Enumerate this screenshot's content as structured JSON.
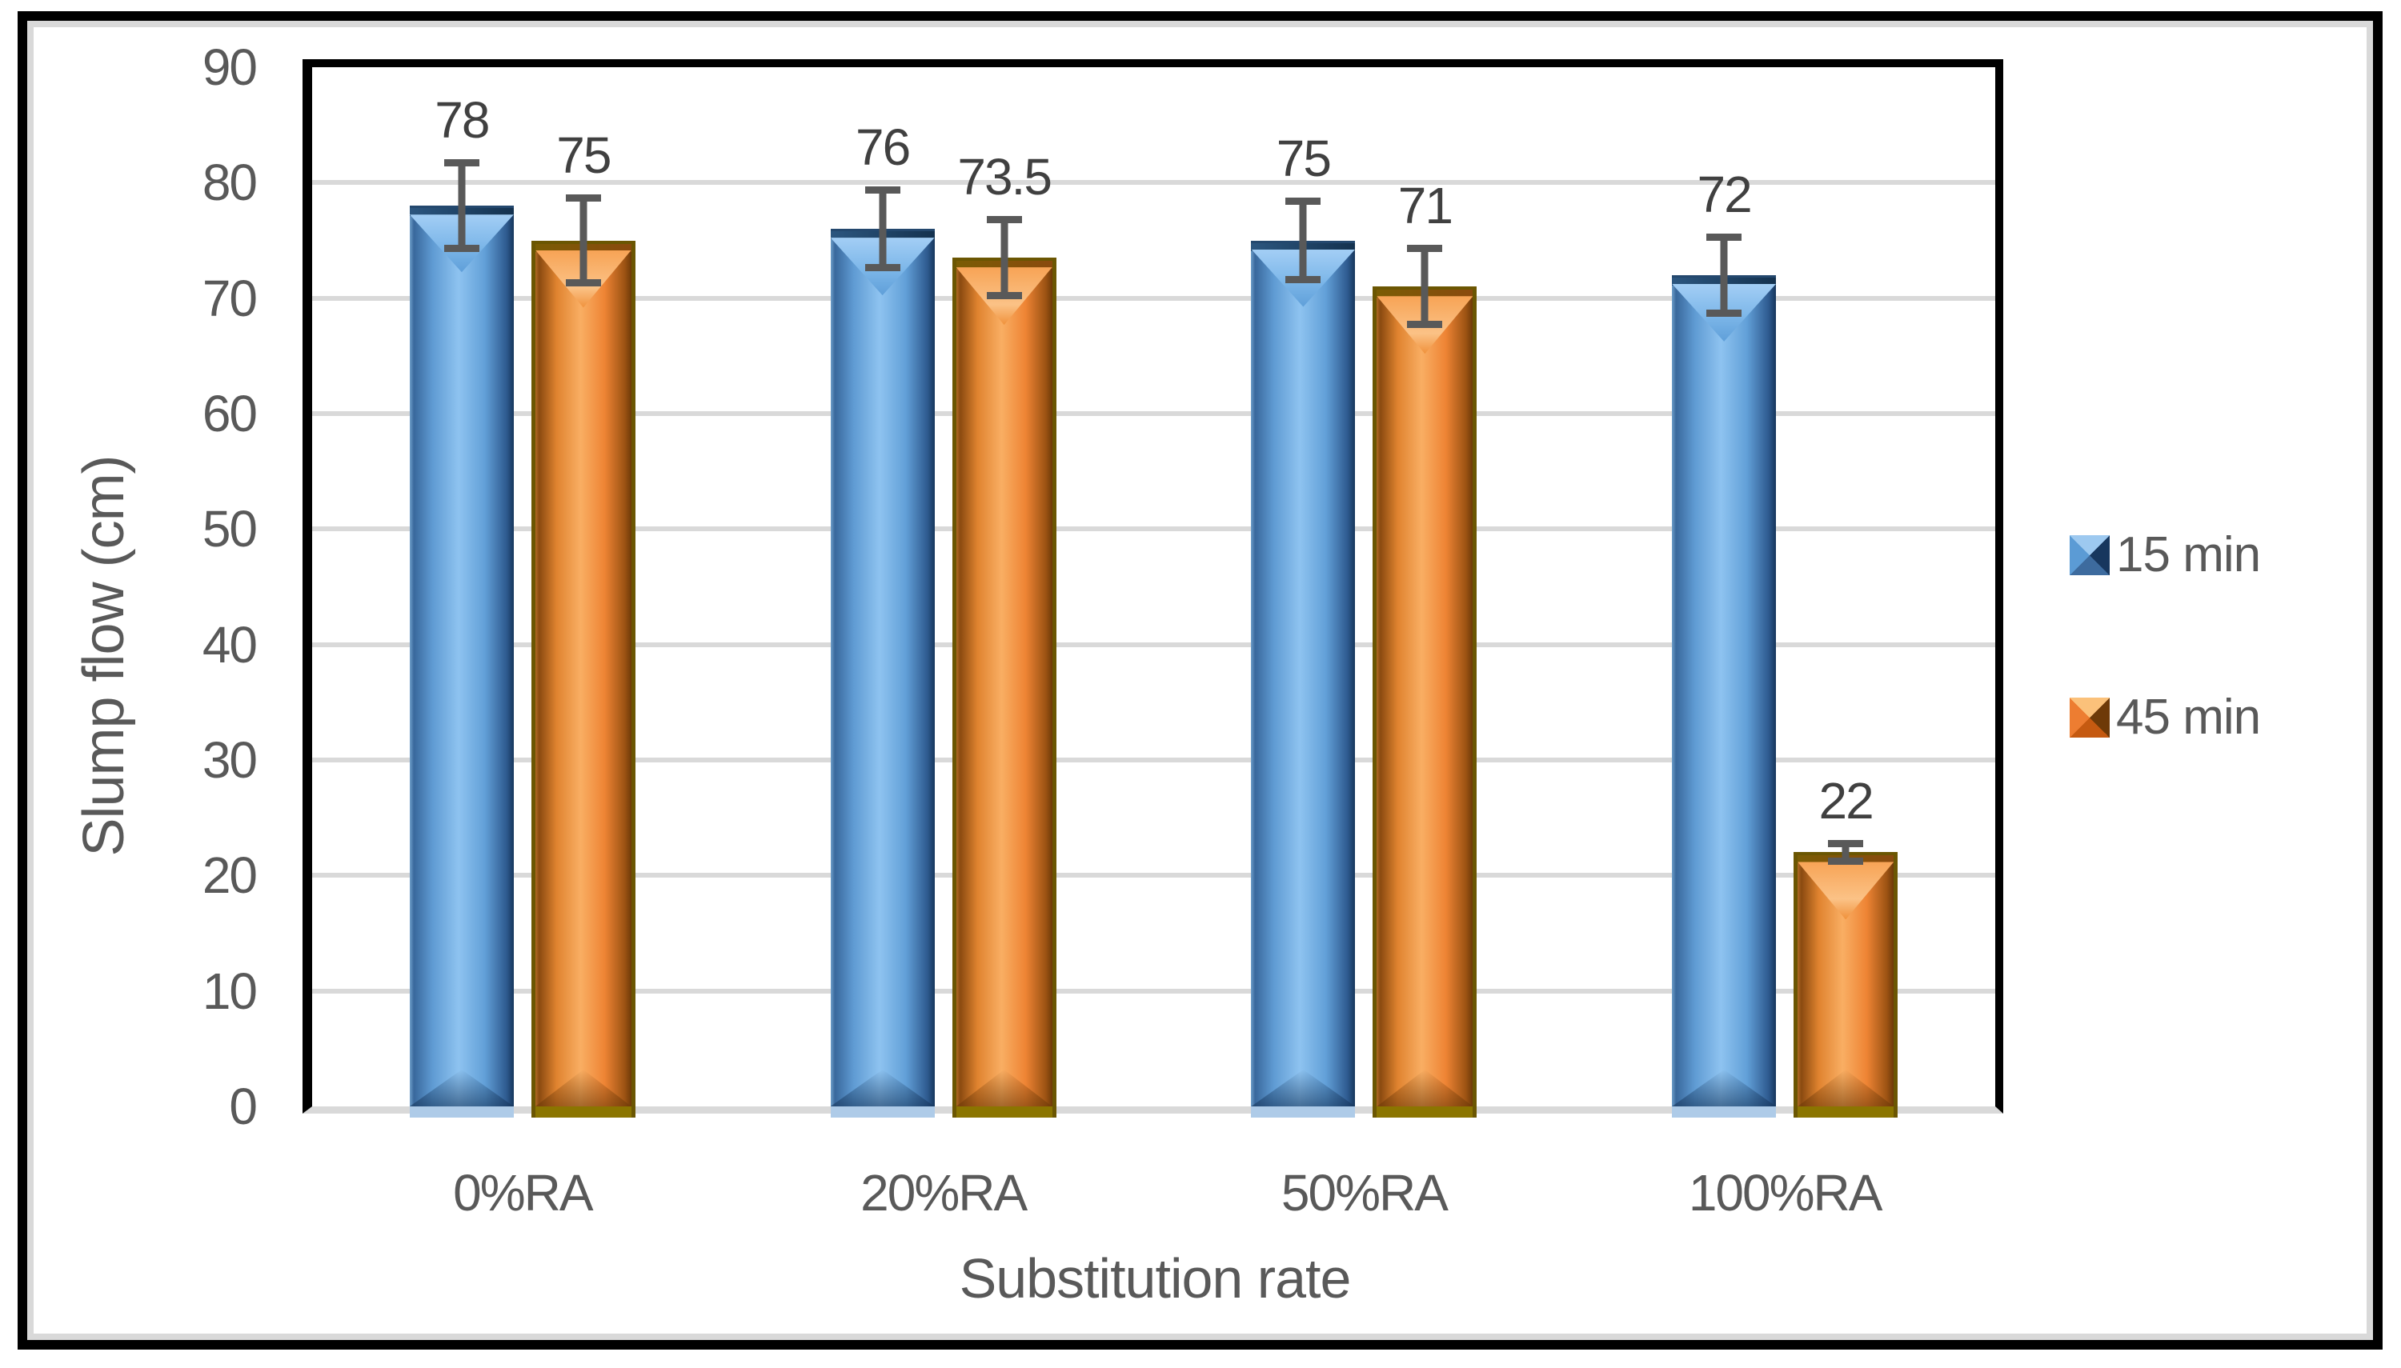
{
  "figure": {
    "background": "#FFFFFF",
    "frame_border_color": "#000000",
    "frame_inner_stroke": "#D9D9D9"
  },
  "chart_data": {
    "type": "bar",
    "title": "",
    "categories": [
      "0%RA",
      "20%RA",
      "50%RA",
      "100%RA"
    ],
    "series": [
      {
        "name": "15 min",
        "color": "#5B9BD5",
        "values": [
          78,
          76,
          75,
          72
        ],
        "errors": [
          4,
          3.7,
          3.7,
          3.6
        ]
      },
      {
        "name": "45 min",
        "color": "#ED7D31",
        "values": [
          75,
          73.5,
          71,
          22
        ],
        "errors": [
          4,
          3.6,
          3.6,
          1.1
        ]
      }
    ],
    "data_labels": [
      "78",
      "75",
      "76",
      "73.5",
      "75",
      "71",
      "72",
      "22"
    ],
    "xlabel": "Substitution rate",
    "ylabel": "Slump flow (cm)",
    "ylim": [
      0,
      90
    ],
    "ytick_step": 10,
    "yticks": [
      0,
      10,
      20,
      30,
      40,
      50,
      60,
      70,
      80,
      90
    ],
    "grid": true,
    "grid_color": "#D9D9D9",
    "axis_line_color": "#000000",
    "tick_text_color": "#595959",
    "data_label_color": "#404040",
    "legend_text_color": "#595959",
    "error_bar_color": "#595959",
    "legend_position": "right",
    "bar_style": "3d-bevel",
    "error_bars": true
  }
}
